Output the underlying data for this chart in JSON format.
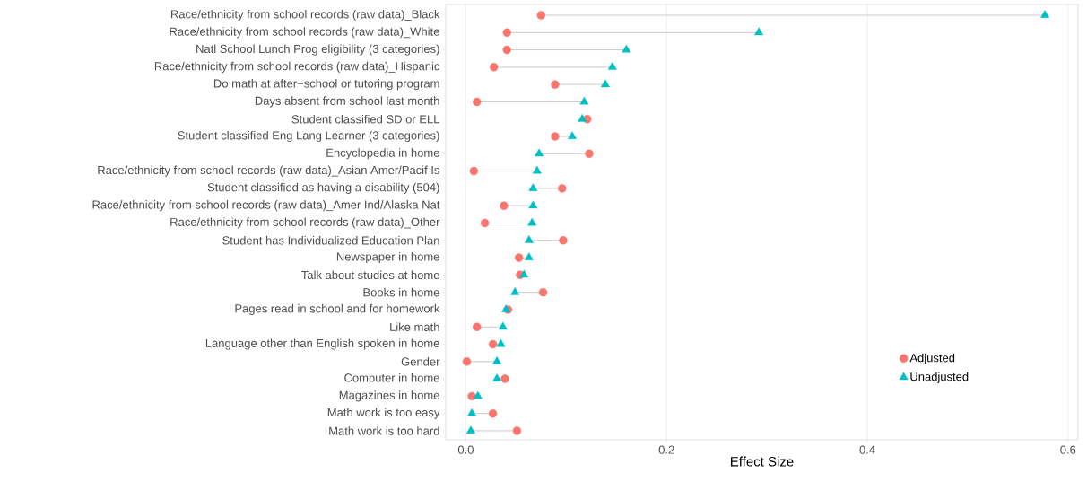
{
  "chart_data": {
    "type": "scatter",
    "orientation": "horizontal",
    "xlabel": "Effect Size",
    "categories": [
      "Race/ethnicity from school records (raw data)_Black",
      "Race/ethnicity from school records (raw data)_White",
      "Natl School Lunch Prog eligibility (3 categories)",
      "Race/ethnicity from school records (raw data)_Hispanic",
      "Do math at after−school or tutoring program",
      "Days absent from school last month",
      "Student classified SD or ELL",
      "Student classified Eng Lang Learner (3 categories)",
      "Encyclopedia in home",
      "Race/ethnicity from school records (raw data)_Asian Amer/Pacif Is",
      "Student classified as having a disability (504)",
      "Race/ethnicity from school records (raw data)_Amer Ind/Alaska Nat",
      "Race/ethnicity from school records (raw data)_Other",
      "Student has Individualized Education Plan",
      "Newspaper in home",
      "Talk about studies at home",
      "Books in home",
      "Pages read in school and for homework",
      "Like math",
      "Language other than English spoken in home",
      "Gender",
      "Computer in home",
      "Magazines in home",
      "Math work is too easy",
      "Math work is too hard"
    ],
    "series": [
      {
        "name": "Adjusted",
        "color": "#f8766d",
        "marker": "circle",
        "values": [
          0.075,
          0.041,
          0.041,
          0.028,
          0.089,
          0.011,
          0.121,
          0.089,
          0.123,
          0.008,
          0.096,
          0.038,
          0.019,
          0.097,
          0.053,
          0.054,
          0.077,
          0.042,
          0.011,
          0.027,
          0.001,
          0.039,
          0.006,
          0.027,
          0.051
        ]
      },
      {
        "name": "Unadjusted",
        "color": "#00bfc4",
        "marker": "triangle",
        "values": [
          0.577,
          0.292,
          0.16,
          0.146,
          0.139,
          0.118,
          0.116,
          0.106,
          0.073,
          0.071,
          0.067,
          0.067,
          0.066,
          0.063,
          0.063,
          0.058,
          0.049,
          0.04,
          0.037,
          0.035,
          0.031,
          0.031,
          0.012,
          0.006,
          0.005
        ]
      }
    ],
    "xlim": [
      -0.02,
      0.61
    ],
    "xticks": [
      {
        "value": 0,
        "label": "0.0"
      },
      0.2,
      0.4,
      0.6
    ],
    "grid": "x",
    "legend": "bottom right"
  }
}
